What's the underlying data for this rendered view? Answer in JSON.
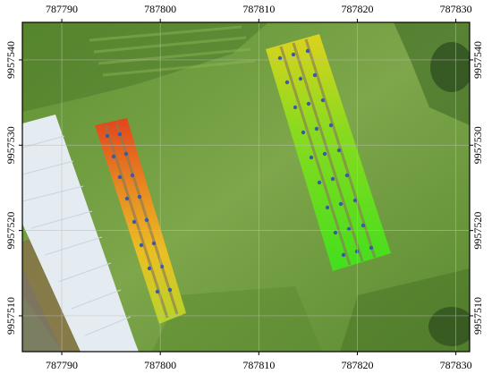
{
  "map": {
    "x_ticks": [
      "787790",
      "787800",
      "787810",
      "787820",
      "787830"
    ],
    "y_ticks": [
      "9957540",
      "9957530",
      "9957520",
      "9957510"
    ],
    "x_range": [
      787786.0,
      787831.4
    ],
    "y_range": [
      9957505.8,
      9957544.4
    ],
    "colors": {
      "grass": "#6e9a3c",
      "grass_dark": "#52782a",
      "soil": "#8a7a58",
      "greenhouse": "#e6eef2",
      "low_vigor": "#e23a10",
      "mid_vigor": "#f2c21a",
      "high_vigor": "#3ee61a",
      "plant_marker": "#3a5aa8",
      "frame": "#000000",
      "grid": "#bdbdbd"
    }
  }
}
